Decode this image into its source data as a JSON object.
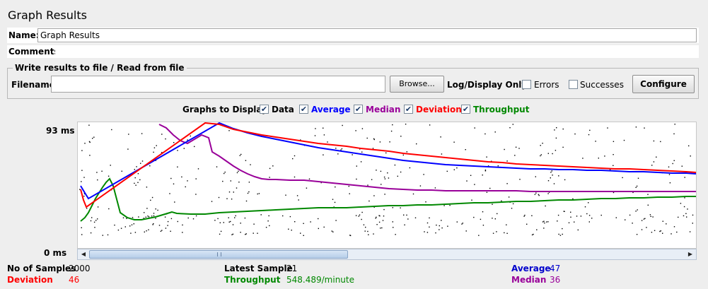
{
  "window": {
    "title": "Graph Results"
  },
  "form": {
    "name_label": "Name:",
    "name_value": "Graph Results",
    "comments_label": "Comments:"
  },
  "file_section": {
    "title": "Write results to file / Read from file",
    "filename_label": "Filename",
    "filename_value": "",
    "browse_label": "Browse...",
    "log_display_label": "Log/Display Only:",
    "errors_label": "Errors",
    "errors_checked": false,
    "successes_label": "Successes",
    "successes_checked": false,
    "configure_label": "Configure"
  },
  "graphs_to_display": {
    "label": "Graphs to Display",
    "options": [
      {
        "label": "Data",
        "checked": true,
        "color": "#000000"
      },
      {
        "label": "Average",
        "checked": true,
        "color": "#0000ff"
      },
      {
        "label": "Median",
        "checked": true,
        "color": "#990099"
      },
      {
        "label": "Deviation",
        "checked": true,
        "color": "#ff0000"
      },
      {
        "label": "Throughput",
        "checked": true,
        "color": "#008800"
      }
    ]
  },
  "graph": {
    "y_max_label": "93 ms",
    "y_min_label": "0 ms"
  },
  "stats": {
    "samples_label": "No of Samples",
    "samples_value": "2000",
    "deviation_label": "Deviation",
    "deviation_value": "46",
    "latest_label": "Latest Sample",
    "latest_value": "21",
    "throughput_label": "Throughput",
    "throughput_value": "548.489/minute",
    "average_label": "Average",
    "average_value": "47",
    "median_label": "Median",
    "median_value": "36"
  },
  "colors": {
    "data": "#000000",
    "average": "#0000ff",
    "median": "#990099",
    "deviation": "#ff0000",
    "throughput": "#008800"
  }
}
